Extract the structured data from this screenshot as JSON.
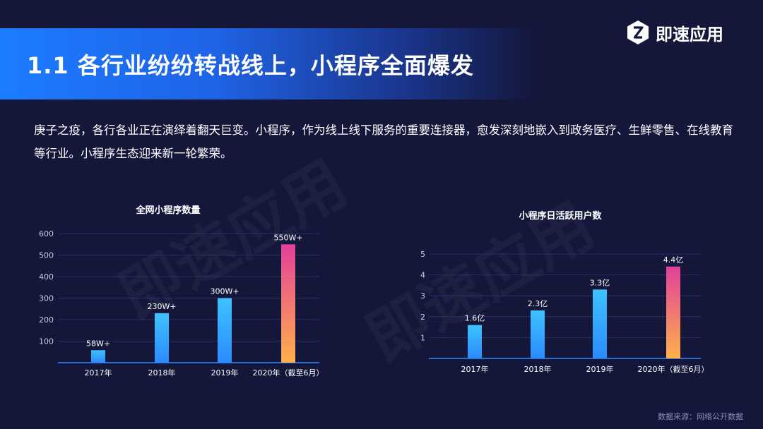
{
  "brand": {
    "name": "即速应用",
    "logo_icon": "z-hexagon-logo-icon",
    "color": "#ffffff"
  },
  "header": {
    "title": "1.1  各行业纷纷转战线上，小程序全面爆发",
    "accent": "#1c7cff"
  },
  "intro": "庚子之疫，各行各业正在演绎着翻天巨变。小程序，作为线上线下服务的重要连接器，愈发深刻地嵌入到政务医疗、生鲜零售、在线教育等行业。小程序生态迎来新一轮繁荣。",
  "watermarks": [
    "即速应用",
    "即速应用"
  ],
  "chart_data": [
    {
      "type": "bar",
      "title": "全网小程序数量",
      "categories": [
        "2017年",
        "2018年",
        "2019年",
        "2020年（截至6月）"
      ],
      "values": [
        58,
        230,
        300,
        550
      ],
      "data_labels": [
        "58W+",
        "230W+",
        "300W+",
        "550W+"
      ],
      "yticks": [
        "100",
        "200",
        "300",
        "400",
        "500",
        "600"
      ],
      "ylim": [
        0,
        600
      ],
      "grid": true,
      "bar_gradient": [
        "#2b8bff",
        "#3ec2ff"
      ],
      "highlight_gradient": [
        "#e2409a",
        "#ffb04a"
      ]
    },
    {
      "type": "bar",
      "title": "小程序日活跃用户数",
      "categories": [
        "2017年",
        "2018年",
        "2019年",
        "2020年（截至6月）"
      ],
      "values": [
        1.6,
        2.3,
        3.3,
        4.4
      ],
      "data_labels": [
        "1.6亿",
        "2.3亿",
        "3.3亿",
        "4.4亿"
      ],
      "yticks": [
        "1",
        "2",
        "3",
        "4",
        "5"
      ],
      "ylim": [
        0,
        5
      ],
      "grid": true,
      "bar_gradient": [
        "#2b8bff",
        "#3ec2ff"
      ],
      "highlight_gradient": [
        "#e2409a",
        "#ffb04a"
      ]
    }
  ],
  "source": "数据来源：网络公开数据"
}
